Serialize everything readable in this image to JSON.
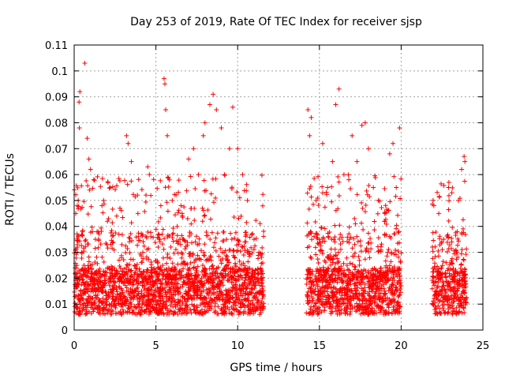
{
  "chart_data": {
    "type": "scatter",
    "title": "Day 253 of 2019, Rate Of TEC Index for receiver sjsp",
    "xlabel": "GPS time / hours",
    "ylabel": "ROTI / TECUs",
    "xlim": [
      0,
      25
    ],
    "ylim": [
      0,
      0.11
    ],
    "x_ticks": [
      0,
      5,
      10,
      15,
      20,
      25
    ],
    "x_tick_labels": [
      "0",
      "5",
      "10",
      "15",
      "20",
      "25"
    ],
    "y_ticks": [
      0,
      0.01,
      0.02,
      0.03,
      0.04,
      0.05,
      0.06,
      0.07,
      0.08,
      0.09,
      0.1,
      0.11
    ],
    "y_tick_labels": [
      "0",
      "0.01",
      "0.02",
      "0.03",
      "0.04",
      "0.05",
      "0.06",
      "0.07",
      "0.08",
      "0.09",
      "0.1",
      "0.11"
    ],
    "grid": true,
    "marker": "plus",
    "color": "#ff0000",
    "data_coverage_hours": [
      [
        0,
        11.6
      ],
      [
        14.2,
        20.0
      ],
      [
        21.9,
        24.0
      ]
    ],
    "series": [
      {
        "points": [
          [
            0.05,
            0.013
          ],
          [
            0.1,
            0.045
          ],
          [
            0.15,
            0.02
          ],
          [
            0.2,
            0.032
          ],
          [
            0.25,
            0.05
          ],
          [
            0.3,
            0.088
          ],
          [
            0.32,
            0.078
          ],
          [
            0.35,
            0.092
          ],
          [
            0.4,
            0.015
          ],
          [
            0.45,
            0.03
          ],
          [
            0.5,
            0.012
          ],
          [
            0.6,
            0.025
          ],
          [
            0.65,
            0.103
          ],
          [
            0.7,
            0.018
          ],
          [
            0.8,
            0.074
          ],
          [
            0.9,
            0.066
          ],
          [
            1.0,
            0.062
          ],
          [
            1.1,
            0.02
          ],
          [
            1.2,
            0.058
          ],
          [
            1.3,
            0.035
          ],
          [
            1.5,
            0.015
          ],
          [
            1.7,
            0.048
          ],
          [
            1.8,
            0.05
          ],
          [
            2.0,
            0.033
          ],
          [
            2.2,
            0.055
          ],
          [
            2.4,
            0.02
          ],
          [
            2.6,
            0.044
          ],
          [
            2.8,
            0.047
          ],
          [
            3.0,
            0.018
          ],
          [
            3.2,
            0.075
          ],
          [
            3.3,
            0.072
          ],
          [
            3.5,
            0.065
          ],
          [
            3.7,
            0.025
          ],
          [
            3.9,
            0.045
          ],
          [
            4.2,
            0.03
          ],
          [
            4.5,
            0.063
          ],
          [
            4.6,
            0.06
          ],
          [
            5.0,
            0.01
          ],
          [
            5.3,
            0.048
          ],
          [
            5.5,
            0.097
          ],
          [
            5.55,
            0.095
          ],
          [
            5.6,
            0.085
          ],
          [
            5.7,
            0.075
          ],
          [
            6.0,
            0.05
          ],
          [
            6.3,
            0.04
          ],
          [
            6.6,
            0.045
          ],
          [
            7.0,
            0.066
          ],
          [
            7.3,
            0.07
          ],
          [
            7.6,
            0.06
          ],
          [
            7.9,
            0.075
          ],
          [
            8.0,
            0.08
          ],
          [
            8.3,
            0.087
          ],
          [
            8.5,
            0.091
          ],
          [
            8.7,
            0.085
          ],
          [
            9.0,
            0.078
          ],
          [
            9.2,
            0.06
          ],
          [
            9.5,
            0.07
          ],
          [
            9.7,
            0.086
          ],
          [
            10.0,
            0.07
          ],
          [
            10.3,
            0.06
          ],
          [
            10.6,
            0.05
          ],
          [
            11.0,
            0.035
          ],
          [
            11.3,
            0.03
          ],
          [
            14.3,
            0.085
          ],
          [
            14.4,
            0.075
          ],
          [
            14.5,
            0.082
          ],
          [
            14.8,
            0.05
          ],
          [
            15.2,
            0.072
          ],
          [
            15.5,
            0.055
          ],
          [
            15.8,
            0.065
          ],
          [
            16.0,
            0.087
          ],
          [
            16.2,
            0.093
          ],
          [
            16.5,
            0.06
          ],
          [
            16.8,
            0.058
          ],
          [
            17.0,
            0.075
          ],
          [
            17.3,
            0.065
          ],
          [
            17.6,
            0.079
          ],
          [
            17.8,
            0.08
          ],
          [
            18.0,
            0.07
          ],
          [
            18.3,
            0.055
          ],
          [
            18.6,
            0.05
          ],
          [
            19.0,
            0.045
          ],
          [
            19.3,
            0.068
          ],
          [
            19.5,
            0.072
          ],
          [
            19.7,
            0.055
          ],
          [
            19.9,
            0.078
          ],
          [
            22.0,
            0.048
          ],
          [
            22.3,
            0.045
          ],
          [
            22.6,
            0.035
          ],
          [
            22.9,
            0.055
          ],
          [
            23.1,
            0.053
          ],
          [
            23.4,
            0.03
          ],
          [
            23.7,
            0.062
          ],
          [
            23.85,
            0.067
          ],
          [
            23.9,
            0.065
          ]
        ]
      }
    ]
  }
}
